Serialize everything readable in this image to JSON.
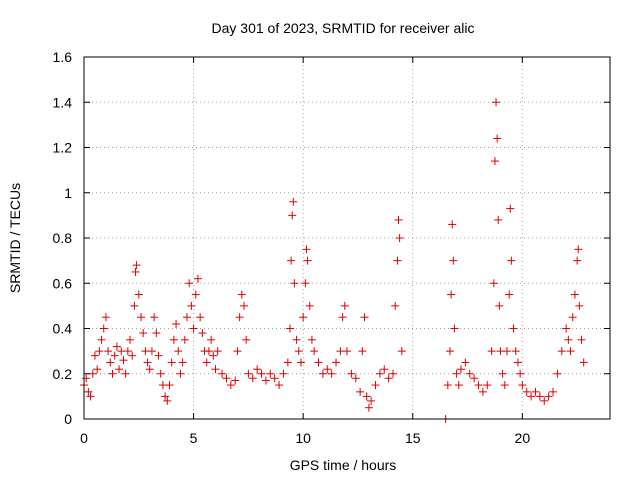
{
  "chart_data": {
    "type": "scatter",
    "title": "Day 301 of 2023, SRMTID for receiver alic",
    "xlabel": "GPS time / hours",
    "ylabel": "SRMTID / TECUs",
    "xlim": [
      0,
      24
    ],
    "ylim": [
      0,
      1.6
    ],
    "x_ticks": [
      0,
      5,
      10,
      15,
      20
    ],
    "x_tick_labels": [
      "0",
      "5",
      "10",
      "15",
      "20"
    ],
    "y_ticks": [
      0,
      0.2,
      0.4,
      0.6,
      0.8,
      1.0,
      1.2,
      1.4,
      1.6
    ],
    "y_tick_labels": [
      "0",
      "0.2",
      "0.4",
      "0.6",
      "0.8",
      "1",
      "1.2",
      "1.4",
      "1.6"
    ],
    "grid": true,
    "marker": "plus",
    "color": "#e00000",
    "series": [
      {
        "name": "SRMTID",
        "points": [
          [
            0.0,
            0.15
          ],
          [
            0.1,
            0.18
          ],
          [
            0.2,
            0.12
          ],
          [
            0.3,
            0.1
          ],
          [
            0.4,
            0.2
          ],
          [
            0.5,
            0.28
          ],
          [
            0.6,
            0.22
          ],
          [
            0.7,
            0.3
          ],
          [
            0.8,
            0.35
          ],
          [
            0.9,
            0.4
          ],
          [
            1.0,
            0.45
          ],
          [
            1.1,
            0.3
          ],
          [
            1.2,
            0.25
          ],
          [
            1.3,
            0.2
          ],
          [
            1.4,
            0.28
          ],
          [
            1.5,
            0.32
          ],
          [
            1.6,
            0.22
          ],
          [
            1.7,
            0.3
          ],
          [
            1.8,
            0.26
          ],
          [
            1.9,
            0.2
          ],
          [
            2.0,
            0.3
          ],
          [
            2.1,
            0.35
          ],
          [
            2.2,
            0.28
          ],
          [
            2.3,
            0.5
          ],
          [
            2.35,
            0.65
          ],
          [
            2.4,
            0.68
          ],
          [
            2.5,
            0.55
          ],
          [
            2.6,
            0.45
          ],
          [
            2.7,
            0.38
          ],
          [
            2.8,
            0.3
          ],
          [
            2.9,
            0.25
          ],
          [
            3.0,
            0.22
          ],
          [
            3.1,
            0.3
          ],
          [
            3.2,
            0.45
          ],
          [
            3.3,
            0.38
          ],
          [
            3.4,
            0.28
          ],
          [
            3.5,
            0.2
          ],
          [
            3.6,
            0.15
          ],
          [
            3.7,
            0.1
          ],
          [
            3.8,
            0.08
          ],
          [
            3.9,
            0.15
          ],
          [
            4.0,
            0.25
          ],
          [
            4.1,
            0.35
          ],
          [
            4.2,
            0.42
          ],
          [
            4.3,
            0.3
          ],
          [
            4.4,
            0.2
          ],
          [
            4.5,
            0.25
          ],
          [
            4.6,
            0.35
          ],
          [
            4.7,
            0.45
          ],
          [
            4.8,
            0.6
          ],
          [
            4.9,
            0.5
          ],
          [
            5.0,
            0.4
          ],
          [
            5.1,
            0.55
          ],
          [
            5.2,
            0.62
          ],
          [
            5.3,
            0.45
          ],
          [
            5.4,
            0.38
          ],
          [
            5.5,
            0.3
          ],
          [
            5.6,
            0.25
          ],
          [
            5.7,
            0.3
          ],
          [
            5.8,
            0.35
          ],
          [
            5.9,
            0.28
          ],
          [
            6.0,
            0.22
          ],
          [
            6.1,
            0.3
          ],
          [
            6.3,
            0.2
          ],
          [
            6.5,
            0.18
          ],
          [
            6.7,
            0.15
          ],
          [
            6.9,
            0.17
          ],
          [
            7.0,
            0.3
          ],
          [
            7.1,
            0.45
          ],
          [
            7.2,
            0.55
          ],
          [
            7.3,
            0.5
          ],
          [
            7.4,
            0.35
          ],
          [
            7.5,
            0.2
          ],
          [
            7.7,
            0.18
          ],
          [
            7.9,
            0.22
          ],
          [
            8.1,
            0.2
          ],
          [
            8.3,
            0.17
          ],
          [
            8.5,
            0.2
          ],
          [
            8.7,
            0.18
          ],
          [
            8.9,
            0.15
          ],
          [
            9.1,
            0.2
          ],
          [
            9.3,
            0.25
          ],
          [
            9.4,
            0.4
          ],
          [
            9.45,
            0.7
          ],
          [
            9.5,
            0.9
          ],
          [
            9.55,
            0.96
          ],
          [
            9.6,
            0.6
          ],
          [
            9.7,
            0.35
          ],
          [
            9.8,
            0.3
          ],
          [
            9.9,
            0.25
          ],
          [
            10.0,
            0.45
          ],
          [
            10.1,
            0.6
          ],
          [
            10.15,
            0.75
          ],
          [
            10.2,
            0.7
          ],
          [
            10.3,
            0.5
          ],
          [
            10.4,
            0.35
          ],
          [
            10.5,
            0.3
          ],
          [
            10.7,
            0.25
          ],
          [
            10.9,
            0.2
          ],
          [
            11.1,
            0.22
          ],
          [
            11.3,
            0.2
          ],
          [
            11.5,
            0.25
          ],
          [
            11.7,
            0.3
          ],
          [
            11.8,
            0.45
          ],
          [
            11.9,
            0.5
          ],
          [
            12.0,
            0.3
          ],
          [
            12.2,
            0.2
          ],
          [
            12.4,
            0.18
          ],
          [
            12.6,
            0.12
          ],
          [
            12.7,
            0.3
          ],
          [
            12.8,
            0.45
          ],
          [
            12.9,
            0.1
          ],
          [
            13.0,
            0.05
          ],
          [
            13.1,
            0.08
          ],
          [
            13.3,
            0.15
          ],
          [
            13.5,
            0.2
          ],
          [
            13.7,
            0.22
          ],
          [
            13.9,
            0.18
          ],
          [
            14.1,
            0.2
          ],
          [
            14.2,
            0.5
          ],
          [
            14.3,
            0.7
          ],
          [
            14.35,
            0.88
          ],
          [
            14.4,
            0.8
          ],
          [
            14.5,
            0.3
          ],
          [
            16.5,
            0.0
          ],
          [
            16.6,
            0.15
          ],
          [
            16.7,
            0.3
          ],
          [
            16.75,
            0.55
          ],
          [
            16.8,
            0.86
          ],
          [
            16.85,
            0.7
          ],
          [
            16.9,
            0.4
          ],
          [
            17.0,
            0.2
          ],
          [
            17.1,
            0.15
          ],
          [
            17.2,
            0.22
          ],
          [
            17.4,
            0.25
          ],
          [
            17.6,
            0.2
          ],
          [
            17.8,
            0.18
          ],
          [
            18.0,
            0.15
          ],
          [
            18.2,
            0.12
          ],
          [
            18.4,
            0.15
          ],
          [
            18.6,
            0.3
          ],
          [
            18.7,
            0.6
          ],
          [
            18.75,
            1.14
          ],
          [
            18.8,
            1.4
          ],
          [
            18.85,
            1.24
          ],
          [
            18.9,
            0.88
          ],
          [
            18.95,
            0.5
          ],
          [
            19.0,
            0.3
          ],
          [
            19.1,
            0.2
          ],
          [
            19.2,
            0.15
          ],
          [
            19.3,
            0.3
          ],
          [
            19.4,
            0.55
          ],
          [
            19.45,
            0.93
          ],
          [
            19.5,
            0.7
          ],
          [
            19.6,
            0.4
          ],
          [
            19.7,
            0.3
          ],
          [
            19.8,
            0.25
          ],
          [
            19.9,
            0.2
          ],
          [
            20.0,
            0.15
          ],
          [
            20.2,
            0.12
          ],
          [
            20.4,
            0.1
          ],
          [
            20.6,
            0.12
          ],
          [
            20.8,
            0.1
          ],
          [
            21.0,
            0.08
          ],
          [
            21.2,
            0.1
          ],
          [
            21.4,
            0.12
          ],
          [
            21.6,
            0.2
          ],
          [
            21.8,
            0.3
          ],
          [
            22.0,
            0.4
          ],
          [
            22.1,
            0.35
          ],
          [
            22.2,
            0.3
          ],
          [
            22.3,
            0.45
          ],
          [
            22.4,
            0.55
          ],
          [
            22.5,
            0.7
          ],
          [
            22.55,
            0.75
          ],
          [
            22.6,
            0.5
          ],
          [
            22.7,
            0.35
          ],
          [
            22.8,
            0.25
          ]
        ]
      }
    ]
  }
}
